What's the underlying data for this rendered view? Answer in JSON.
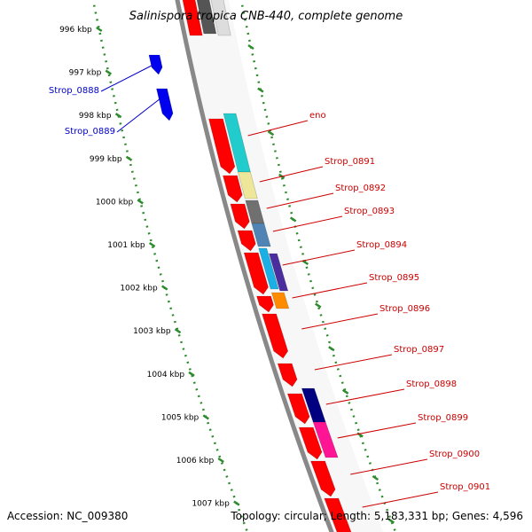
{
  "title": "Salinispora tropica CNB-440, complete genome",
  "footer": {
    "accession": "Accession: NC_009380",
    "info": "Topology: circular; Length: 5,183,331 bp; Genes: 4,596"
  },
  "colors": {
    "backbone": "#888888",
    "tick": "#2e8b2e",
    "reverse_label": "#0000cc",
    "forward_label": "#cc0000"
  },
  "scale_ticks": [
    "996 kbp",
    "997 kbp",
    "998 kbp",
    "999 kbp",
    "1000 kbp",
    "1001 kbp",
    "1002 kbp",
    "1003 kbp",
    "1004 kbp",
    "1005 kbp",
    "1006 kbp",
    "1007 kbp"
  ],
  "reverse_genes": [
    {
      "label": "Strop_0888",
      "color": "#0000ee"
    },
    {
      "label": "Strop_0889",
      "color": "#0000ee"
    }
  ],
  "forward_genes": [
    {
      "label": "eno",
      "color": "#22cccc"
    },
    {
      "label": "Strop_0891",
      "color": "#eee699"
    },
    {
      "label": "Strop_0892",
      "color": "#707070"
    },
    {
      "label": "Strop_0893",
      "color": "#4f84b4"
    },
    {
      "label": "Strop_0894",
      "color": "#1ab0e6"
    },
    {
      "label": "Strop_0895",
      "color": "#4b2e9e"
    },
    {
      "label": "Strop_0896",
      "color": "#ff8c00"
    },
    {
      "label": "Strop_0897",
      "color": "#ff0000"
    },
    {
      "label": "Strop_0898",
      "color": "#000080"
    },
    {
      "label": "Strop_0899",
      "color": "#ff1493"
    },
    {
      "label": "Strop_0900",
      "color": "#ff0000"
    },
    {
      "label": "Strop_0901",
      "color": "#ff0000"
    }
  ]
}
